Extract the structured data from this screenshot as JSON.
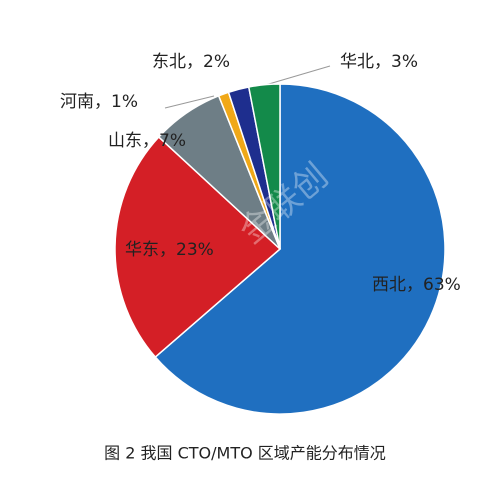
{
  "chart_data": {
    "type": "pie",
    "values": [
      63,
      23,
      7,
      1,
      2,
      3
    ],
    "value_labels": [
      "西北，63%",
      "华东，23%",
      "山东，7%",
      "河南，1%",
      "东北，2%",
      "华北，3%"
    ],
    "colors": [
      "#1f6fc0",
      "#d41f26",
      "#6e7e86",
      "#f0a818",
      "#1e2e8e",
      "#138a4a"
    ],
    "watermark": "金联创",
    "caption": "图 2  我国 CTO/MTO 区域产能分布情况"
  }
}
